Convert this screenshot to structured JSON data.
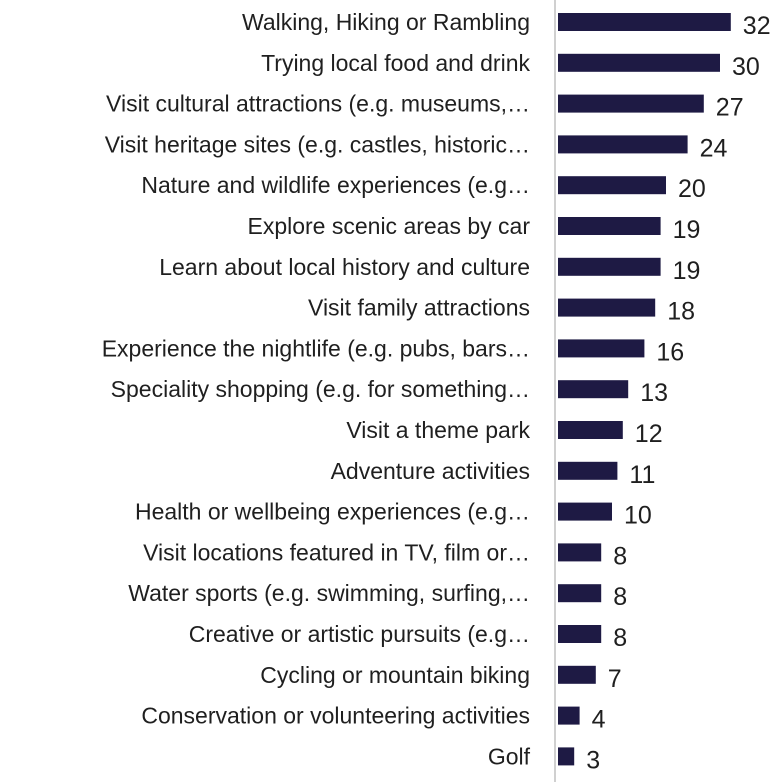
{
  "chart_data": {
    "type": "bar",
    "orientation": "horizontal",
    "categories": [
      "Walking, Hiking or Rambling",
      "Trying local food and drink",
      "Visit cultural attractions (e.g. museums,…",
      "Visit heritage sites (e.g. castles, historic…",
      "Nature and wildlife experiences (e.g…",
      "Explore scenic areas by car",
      "Learn about local history and culture",
      "Visit family attractions",
      "Experience the nightlife (e.g. pubs, bars…",
      "Speciality shopping (e.g. for something…",
      "Visit a theme park",
      "Adventure activities",
      "Health or wellbeing experiences (e.g…",
      "Visit locations featured in TV, film or…",
      "Water sports (e.g. swimming, surfing,…",
      "Creative or artistic pursuits (e.g…",
      "Cycling or mountain biking",
      "Conservation or volunteering activities",
      "Golf"
    ],
    "values": [
      32,
      30,
      27,
      24,
      20,
      19,
      19,
      18,
      16,
      13,
      12,
      11,
      10,
      8,
      8,
      8,
      7,
      4,
      3
    ],
    "value_labels": [
      "32",
      "30",
      "27",
      "24",
      "20",
      "19",
      "19",
      "18",
      "16",
      "13",
      "12",
      "11",
      "10",
      "8",
      "8",
      "8",
      "7",
      "4",
      "3"
    ],
    "title": "",
    "xlabel": "",
    "ylabel": "",
    "grid": false,
    "legend": "none",
    "colors": {
      "bar": "#1e1a44",
      "axis": "#d0d0d0",
      "text": "#1f1f1f"
    }
  }
}
